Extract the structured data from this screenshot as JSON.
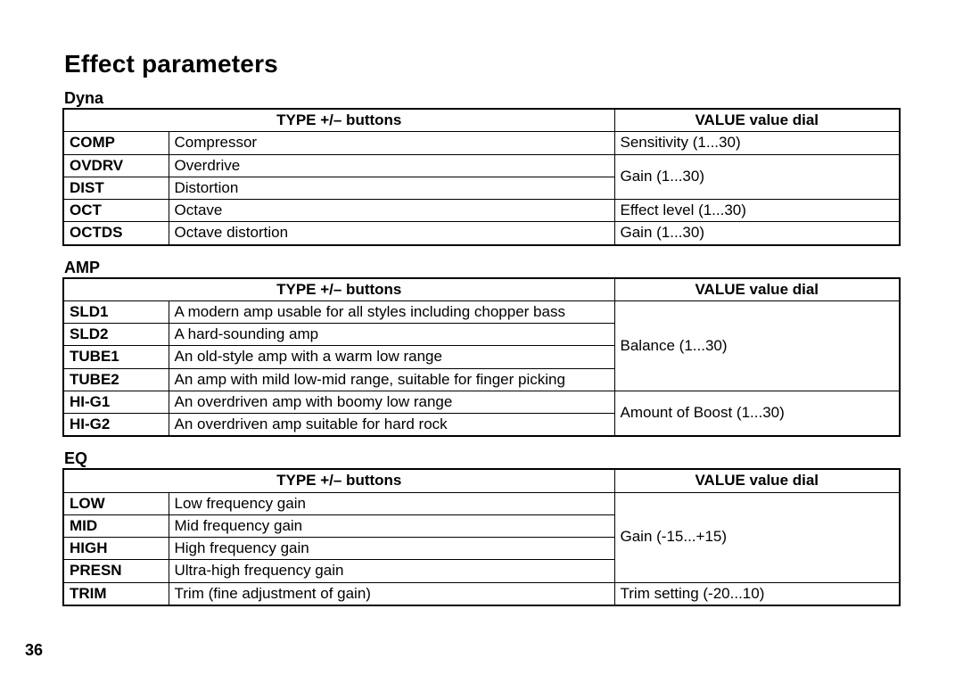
{
  "page_title": "Effect parameters",
  "page_number": "36",
  "sections": {
    "dyna": {
      "title": "Dyna",
      "header_type": "TYPE +/– buttons",
      "header_value": "VALUE value dial",
      "rows": {
        "r0": {
          "label": "COMP",
          "desc": "Compressor",
          "value": "Sensitivity (1...30)"
        },
        "r1": {
          "label": "OVDRV",
          "desc": "Overdrive",
          "value": "Gain (1...30)"
        },
        "r2": {
          "label": "DIST",
          "desc": "Distortion"
        },
        "r3": {
          "label": "OCT",
          "desc": "Octave",
          "value": "Effect level (1...30)"
        },
        "r4": {
          "label": "OCTDS",
          "desc": "Octave distortion",
          "value": "Gain (1...30)"
        }
      }
    },
    "amp": {
      "title": "AMP",
      "header_type": "TYPE +/– buttons",
      "header_value": "VALUE value dial",
      "rows": {
        "r0": {
          "label": "SLD1",
          "desc": "A modern amp usable for all styles including chopper bass",
          "value": "Balance (1...30)"
        },
        "r1": {
          "label": "SLD2",
          "desc": "A hard-sounding amp"
        },
        "r2": {
          "label": "TUBE1",
          "desc": "An old-style amp with a warm low range"
        },
        "r3": {
          "label": "TUBE2",
          "desc": "An amp with mild low-mid range, suitable for finger picking"
        },
        "r4": {
          "label": "HI-G1",
          "desc": "An overdriven amp with boomy low range",
          "value": "Amount of Boost (1...30)"
        },
        "r5": {
          "label": "HI-G2",
          "desc": "An overdriven amp suitable for hard rock"
        }
      }
    },
    "eq": {
      "title": "EQ",
      "header_type": "TYPE +/– buttons",
      "header_value": "VALUE value dial",
      "rows": {
        "r0": {
          "label": "LOW",
          "desc": "Low frequency gain",
          "value": "Gain (-15...+15)"
        },
        "r1": {
          "label": "MID",
          "desc": "Mid frequency gain"
        },
        "r2": {
          "label": "HIGH",
          "desc": "High frequency gain"
        },
        "r3": {
          "label": "PRESN",
          "desc": "Ultra-high frequency gain"
        },
        "r4": {
          "label": "TRIM",
          "desc": "Trim (fine adjustment of gain)",
          "value": "Trim setting (-20...10)"
        }
      }
    }
  }
}
